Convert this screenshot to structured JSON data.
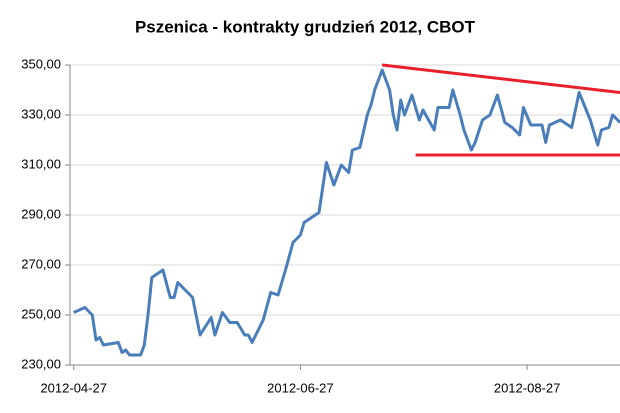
{
  "chart_data": {
    "type": "line",
    "title": "Pszenica - kontrakty grudzień 2012, CBOT",
    "x": [
      "2012-04-27",
      "2012-04-30",
      "2012-05-02",
      "2012-05-03",
      "2012-05-04",
      "2012-05-05",
      "2012-05-09",
      "2012-05-10",
      "2012-05-11",
      "2012-05-12",
      "2012-05-15",
      "2012-05-16",
      "2012-05-17",
      "2012-05-18",
      "2012-05-21",
      "2012-05-23",
      "2012-05-24",
      "2012-05-25",
      "2012-05-29",
      "2012-05-31",
      "2012-06-03",
      "2012-06-04",
      "2012-06-06",
      "2012-06-08",
      "2012-06-10",
      "2012-06-12",
      "2012-06-13",
      "2012-06-14",
      "2012-06-17",
      "2012-06-19",
      "2012-06-21",
      "2012-06-23",
      "2012-06-25",
      "2012-06-27",
      "2012-06-28",
      "2012-06-30",
      "2012-07-02",
      "2012-07-03",
      "2012-07-04",
      "2012-07-06",
      "2012-07-07",
      "2012-07-08",
      "2012-07-10",
      "2012-07-11",
      "2012-07-13",
      "2012-07-15",
      "2012-07-16",
      "2012-07-17",
      "2012-07-19",
      "2012-07-21",
      "2012-07-22",
      "2012-07-23",
      "2012-07-24",
      "2012-07-25",
      "2012-07-27",
      "2012-07-29",
      "2012-07-30",
      "2012-08-02",
      "2012-08-03",
      "2012-08-05",
      "2012-08-06",
      "2012-08-07",
      "2012-08-09",
      "2012-08-10",
      "2012-08-12",
      "2012-08-13",
      "2012-08-15",
      "2012-08-17",
      "2012-08-19",
      "2012-08-21",
      "2012-08-23",
      "2012-08-25",
      "2012-08-26",
      "2012-08-28",
      "2012-08-31",
      "2012-09-01",
      "2012-09-02",
      "2012-09-05",
      "2012-09-08",
      "2012-09-10",
      "2012-09-13",
      "2012-09-15",
      "2012-09-16",
      "2012-09-18",
      "2012-09-19",
      "2012-09-21"
    ],
    "series": [
      {
        "color": "#4a7ebb",
        "values": [
          251,
          253,
          250,
          240,
          241,
          238,
          239,
          235,
          236,
          234,
          234,
          238,
          250,
          265,
          268,
          257,
          257,
          263,
          257,
          242,
          249,
          242,
          251,
          247,
          247,
          242,
          242,
          239,
          248,
          259,
          258,
          268,
          279,
          282,
          287,
          289,
          291,
          301,
          311,
          302,
          306,
          310,
          307,
          316,
          317,
          330,
          334,
          340,
          348,
          340,
          330,
          324,
          336,
          330,
          338,
          328,
          332,
          324,
          333,
          333,
          333,
          340,
          330,
          324,
          316,
          319,
          328,
          330,
          338,
          327,
          325,
          322,
          333,
          326,
          326,
          319,
          326,
          328,
          325,
          339,
          328,
          318,
          324,
          325,
          330,
          327
        ]
      }
    ],
    "trend_lines": [
      {
        "color": "#e8202a",
        "x": [
          "2012-07-19",
          "2012-09-21"
        ],
        "values": [
          350,
          339
        ]
      },
      {
        "color": "#e8202a",
        "x": [
          "2012-07-28",
          "2012-09-21"
        ],
        "values": [
          314,
          314
        ]
      }
    ],
    "xlim": [
      "2012-04-26",
      "2012-09-21"
    ],
    "xticks": [
      "2012-04-27",
      "2012-06-27",
      "2012-08-27"
    ],
    "ylim": [
      230,
      350
    ],
    "yticks": [
      {
        "value": 230,
        "label": "230,00"
      },
      {
        "value": 250,
        "label": "250,00"
      },
      {
        "value": 270,
        "label": "270,00"
      },
      {
        "value": 290,
        "label": "290,00"
      },
      {
        "value": 310,
        "label": "310,00"
      },
      {
        "value": 330,
        "label": "330,00"
      },
      {
        "value": 350,
        "label": "350,00"
      }
    ],
    "grid": true
  }
}
